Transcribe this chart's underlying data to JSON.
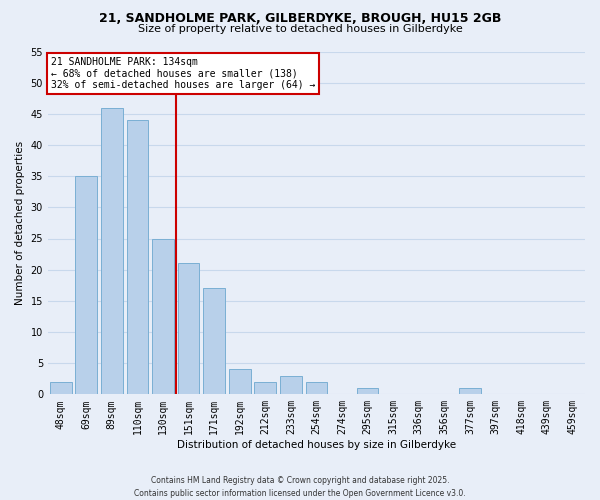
{
  "title1": "21, SANDHOLME PARK, GILBERDYKE, BROUGH, HU15 2GB",
  "title2": "Size of property relative to detached houses in Gilberdyke",
  "xlabel": "Distribution of detached houses by size in Gilberdyke",
  "ylabel": "Number of detached properties",
  "bar_labels": [
    "48sqm",
    "69sqm",
    "89sqm",
    "110sqm",
    "130sqm",
    "151sqm",
    "171sqm",
    "192sqm",
    "212sqm",
    "233sqm",
    "254sqm",
    "274sqm",
    "295sqm",
    "315sqm",
    "336sqm",
    "356sqm",
    "377sqm",
    "397sqm",
    "418sqm",
    "439sqm",
    "459sqm"
  ],
  "bar_values": [
    2,
    35,
    46,
    44,
    25,
    21,
    17,
    4,
    2,
    3,
    2,
    0,
    1,
    0,
    0,
    0,
    1,
    0,
    0,
    0,
    0
  ],
  "bar_color": "#b8d0ea",
  "bar_edge_color": "#7aafd4",
  "vline_x": 4.5,
  "vline_color": "#cc0000",
  "ylim": [
    0,
    55
  ],
  "yticks": [
    0,
    5,
    10,
    15,
    20,
    25,
    30,
    35,
    40,
    45,
    50,
    55
  ],
  "grid_color": "#c8d8ec",
  "bg_color": "#e8eef8",
  "annotation_title": "21 SANDHOLME PARK: 134sqm",
  "annotation_line1": "← 68% of detached houses are smaller (138)",
  "annotation_line2": "32% of semi-detached houses are larger (64) →",
  "annotation_box_color": "white",
  "annotation_box_edge": "#cc0000",
  "footer1": "Contains HM Land Registry data © Crown copyright and database right 2025.",
  "footer2": "Contains public sector information licensed under the Open Government Licence v3.0."
}
